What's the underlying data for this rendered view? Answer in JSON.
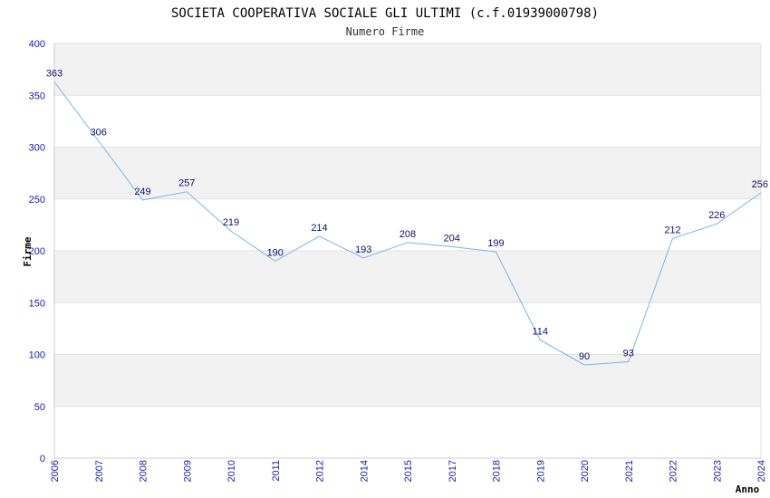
{
  "chart_data": {
    "type": "line",
    "title": "SOCIETA COOPERATIVA SOCIALE GLI ULTIMI (c.f.01939000798)",
    "subtitle": "Numero Firme",
    "xlabel": "Anno",
    "ylabel": "Firme",
    "categories": [
      "2006",
      "2007",
      "2008",
      "2009",
      "2010",
      "2011",
      "2012",
      "2014",
      "2015",
      "2017",
      "2018",
      "2019",
      "2020",
      "2021",
      "2022",
      "2023",
      "2024"
    ],
    "values": [
      363,
      306,
      249,
      257,
      219,
      190,
      214,
      193,
      208,
      204,
      199,
      114,
      90,
      93,
      212,
      226,
      256
    ],
    "ylim": [
      0,
      400
    ],
    "yticks": [
      0,
      50,
      100,
      150,
      200,
      250,
      300,
      350,
      400
    ],
    "grid": true,
    "colors": {
      "line": "#7ab4e8",
      "band": "#f2f2f2",
      "tick_text": "#1a1ab0",
      "label_text": "#101070"
    }
  }
}
